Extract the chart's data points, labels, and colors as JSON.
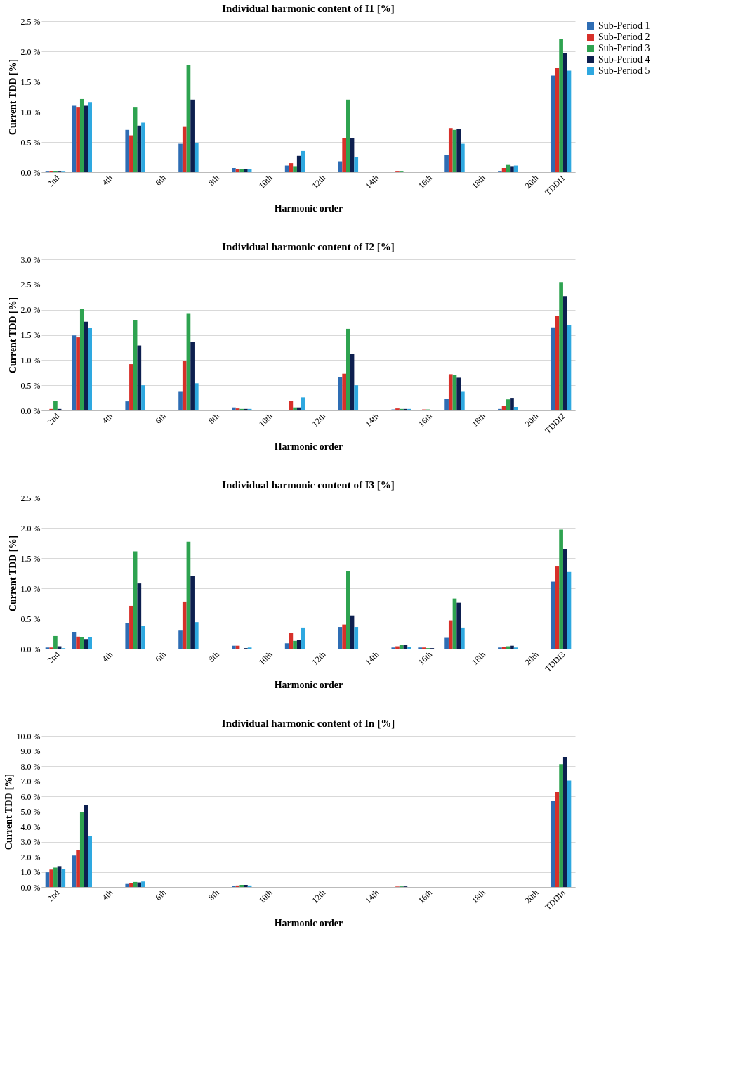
{
  "chart_data": [
    {
      "type": "bar",
      "title": "Individual harmonic content of I1 [%]",
      "xlabel": "Harmonic order",
      "ylabel": "Current TDD [%]",
      "categories": [
        "2nd",
        null,
        "4th",
        null,
        "6th",
        null,
        "8th",
        null,
        "10th",
        null,
        "12th",
        null,
        "14th",
        null,
        "16th",
        null,
        "18th",
        null,
        "20th",
        "TDDI1"
      ],
      "series": [
        {
          "name": "Sub-Period 1",
          "color": "#2e6db4",
          "values": [
            0.01,
            1.1,
            0,
            0.7,
            0,
            0.47,
            0,
            0.07,
            0,
            0.11,
            0,
            0.18,
            0,
            0,
            0,
            0.29,
            0,
            0.01,
            0,
            1.6
          ]
        },
        {
          "name": "Sub-Period 2",
          "color": "#d7302a",
          "values": [
            0.02,
            1.08,
            0,
            0.61,
            0,
            0.76,
            0,
            0.05,
            0,
            0.15,
            0,
            0.56,
            0,
            0.01,
            0,
            0.73,
            0,
            0.07,
            0,
            1.72
          ]
        },
        {
          "name": "Sub-Period 3",
          "color": "#2ea350",
          "values": [
            0.02,
            1.21,
            0,
            1.08,
            0,
            1.78,
            0,
            0.05,
            0,
            0.1,
            0,
            1.2,
            0,
            0.01,
            0,
            0.7,
            0,
            0.12,
            0,
            2.2
          ]
        },
        {
          "name": "Sub-Period 4",
          "color": "#0d1f4f",
          "values": [
            0.01,
            1.1,
            0,
            0.77,
            0,
            1.2,
            0,
            0.05,
            0,
            0.27,
            0,
            0.56,
            0,
            0,
            0,
            0.72,
            0,
            0.1,
            0,
            1.97
          ]
        },
        {
          "name": "Sub-Period 5",
          "color": "#2ea8e0",
          "values": [
            0.01,
            1.16,
            0,
            0.82,
            0,
            0.49,
            0,
            0.05,
            0,
            0.35,
            0,
            0.25,
            0,
            0,
            0,
            0.47,
            0,
            0.11,
            0,
            1.68
          ]
        }
      ],
      "ylim": [
        0,
        2.5
      ],
      "yticks": [
        {
          "value": 0,
          "label": "0.0 %"
        },
        {
          "value": 0.5,
          "label": "0.5 %"
        },
        {
          "value": 1,
          "label": "1.0 %"
        },
        {
          "value": 1.5,
          "label": "1.5 %"
        },
        {
          "value": 2,
          "label": "2.0 %"
        },
        {
          "value": 2.5,
          "label": "2.5 %"
        }
      ],
      "grid": "y",
      "legend": "right"
    },
    {
      "type": "bar",
      "title": "Individual harmonic content of I2 [%]",
      "xlabel": "Harmonic order",
      "ylabel": "Current TDD [%]",
      "categories": [
        "2nd",
        null,
        "4th",
        null,
        "6th",
        null,
        "8th",
        null,
        "10th",
        null,
        "12th",
        null,
        "14th",
        null,
        "16th",
        null,
        "18th",
        null,
        "20th",
        "TDDI2"
      ],
      "series": [
        {
          "name": "Sub-Period 1",
          "color": "#2e6db4",
          "values": [
            0,
            1.49,
            0,
            0.18,
            0,
            0.37,
            0,
            0.06,
            0,
            0.01,
            0,
            0.66,
            0,
            0.02,
            0.01,
            0.23,
            0,
            0.03,
            0,
            1.65
          ]
        },
        {
          "name": "Sub-Period 2",
          "color": "#d7302a",
          "values": [
            0.03,
            1.45,
            0,
            0.92,
            0,
            0.99,
            0,
            0.04,
            0,
            0.19,
            0,
            0.73,
            0,
            0.04,
            0.02,
            0.72,
            0,
            0.09,
            0,
            1.88
          ]
        },
        {
          "name": "Sub-Period 3",
          "color": "#2ea350",
          "values": [
            0.19,
            2.02,
            0,
            1.79,
            0,
            1.92,
            0,
            0.03,
            0,
            0.06,
            0,
            1.62,
            0,
            0.03,
            0.02,
            0.7,
            0,
            0.22,
            0,
            2.55
          ]
        },
        {
          "name": "Sub-Period 4",
          "color": "#0d1f4f",
          "values": [
            0.03,
            1.76,
            0,
            1.29,
            0,
            1.36,
            0,
            0.03,
            0,
            0.06,
            0,
            1.13,
            0,
            0.03,
            0.01,
            0.65,
            0,
            0.25,
            0,
            2.27
          ]
        },
        {
          "name": "Sub-Period 5",
          "color": "#2ea8e0",
          "values": [
            0,
            1.64,
            0,
            0.5,
            0,
            0.54,
            0,
            0.03,
            0,
            0.26,
            0,
            0.5,
            0,
            0.03,
            0,
            0.37,
            0,
            0.07,
            0,
            1.69
          ]
        }
      ],
      "ylim": [
        0,
        3
      ],
      "yticks": [
        {
          "value": 0,
          "label": "0.0 %"
        },
        {
          "value": 0.5,
          "label": "0.5 %"
        },
        {
          "value": 1,
          "label": "1.0 %"
        },
        {
          "value": 1.5,
          "label": "1.5 %"
        },
        {
          "value": 2,
          "label": "2.0 %"
        },
        {
          "value": 2.5,
          "label": "2.5 %"
        },
        {
          "value": 3,
          "label": "3.0 %"
        }
      ],
      "grid": "y",
      "legend": "right"
    },
    {
      "type": "bar",
      "title": "Individual harmonic content of I3 [%]",
      "xlabel": "Harmonic order",
      "ylabel": "Current TDD [%]",
      "categories": [
        "2nd",
        null,
        "4th",
        null,
        "6th",
        null,
        "8th",
        null,
        "10th",
        null,
        "12th",
        null,
        "14th",
        null,
        "16th",
        null,
        "18th",
        null,
        "20th",
        "TDDI3"
      ],
      "series": [
        {
          "name": "Sub-Period 1",
          "color": "#2e6db4",
          "values": [
            0.02,
            0.28,
            0,
            0.42,
            0,
            0.3,
            0,
            0.05,
            0,
            0.09,
            0,
            0.36,
            0,
            0.02,
            0.02,
            0.18,
            0,
            0.02,
            0,
            1.11
          ]
        },
        {
          "name": "Sub-Period 2",
          "color": "#d7302a",
          "values": [
            0.02,
            0.2,
            0,
            0.71,
            0,
            0.78,
            0,
            0.05,
            0,
            0.26,
            0,
            0.4,
            0,
            0.04,
            0.02,
            0.47,
            0,
            0.03,
            0,
            1.36
          ]
        },
        {
          "name": "Sub-Period 3",
          "color": "#2ea350",
          "values": [
            0.21,
            0.19,
            0,
            1.61,
            0,
            1.77,
            0,
            0,
            0,
            0.13,
            0,
            1.28,
            0,
            0.07,
            0.01,
            0.83,
            0,
            0.04,
            0,
            1.97
          ]
        },
        {
          "name": "Sub-Period 4",
          "color": "#0d1f4f",
          "values": [
            0.04,
            0.16,
            0,
            1.08,
            0,
            1.2,
            0,
            0.01,
            0,
            0.15,
            0,
            0.55,
            0,
            0.07,
            0.01,
            0.76,
            0,
            0.05,
            0,
            1.65
          ]
        },
        {
          "name": "Sub-Period 5",
          "color": "#2ea8e0",
          "values": [
            0.01,
            0.19,
            0,
            0.38,
            0,
            0.44,
            0,
            0.02,
            0,
            0.35,
            0,
            0.36,
            0,
            0.03,
            0,
            0.35,
            0,
            0.02,
            0,
            1.27
          ]
        }
      ],
      "ylim": [
        0,
        2.5
      ],
      "yticks": [
        {
          "value": 0,
          "label": "0.0 %"
        },
        {
          "value": 0.5,
          "label": "0.5 %"
        },
        {
          "value": 1,
          "label": "1.0 %"
        },
        {
          "value": 1.5,
          "label": "1.5 %"
        },
        {
          "value": 2,
          "label": "2.0 %"
        },
        {
          "value": 2.5,
          "label": "2.5 %"
        }
      ],
      "grid": "y",
      "legend": "right"
    },
    {
      "type": "bar",
      "title": "Individual harmonic content of In [%]",
      "xlabel": "Harmonic order",
      "ylabel": "Current TDD [%]",
      "categories": [
        "2nd",
        null,
        "4th",
        null,
        "6th",
        null,
        "8th",
        null,
        "10th",
        null,
        "12th",
        null,
        "14th",
        null,
        "16th",
        null,
        "18th",
        null,
        "20th",
        "TDDIn"
      ],
      "series": [
        {
          "name": "Sub-Period 1",
          "color": "#2e6db4",
          "values": [
            0.97,
            2.08,
            0,
            0.2,
            0,
            0,
            0,
            0.09,
            0,
            0,
            0,
            0,
            0,
            null,
            0,
            0,
            0,
            0,
            0,
            5.72
          ]
        },
        {
          "name": "Sub-Period 2",
          "color": "#d7302a",
          "values": [
            1.15,
            2.42,
            0,
            0.25,
            0,
            0,
            0,
            0.1,
            0,
            0,
            0,
            0,
            0,
            0.03,
            0,
            0,
            0,
            0,
            0,
            6.28
          ]
        },
        {
          "name": "Sub-Period 3",
          "color": "#2ea350",
          "values": [
            1.28,
            4.97,
            0,
            0.33,
            0,
            0,
            0,
            0.14,
            0,
            0,
            0,
            0,
            0,
            0.04,
            0,
            0,
            0,
            0,
            0,
            8.13
          ]
        },
        {
          "name": "Sub-Period 4",
          "color": "#0d1f4f",
          "values": [
            1.38,
            5.4,
            0,
            0.3,
            0,
            0,
            0,
            0.14,
            0,
            0,
            0,
            0,
            0,
            0.04,
            0,
            0,
            0,
            0,
            0,
            8.6
          ]
        },
        {
          "name": "Sub-Period 5",
          "color": "#2ea8e0",
          "values": [
            1.2,
            3.38,
            0,
            0.36,
            0,
            0,
            0,
            0.1,
            0,
            0,
            0,
            0,
            0,
            null,
            0,
            0,
            0,
            0,
            0,
            7.05
          ]
        }
      ],
      "ylim": [
        0,
        10
      ],
      "yticks": [
        {
          "value": 0,
          "label": "0.0 %"
        },
        {
          "value": 1,
          "label": "1.0 %"
        },
        {
          "value": 2,
          "label": "2.0 %"
        },
        {
          "value": 3,
          "label": "3.0 %"
        },
        {
          "value": 4,
          "label": "4.0 %"
        },
        {
          "value": 5,
          "label": "5.0 %"
        },
        {
          "value": 6,
          "label": "6.0 %"
        },
        {
          "value": 7,
          "label": "7.0 %"
        },
        {
          "value": 8,
          "label": "8.0 %"
        },
        {
          "value": 9,
          "label": "9.0 %"
        },
        {
          "value": 10,
          "label": "10.0 %"
        }
      ],
      "grid": "y",
      "legend": "right"
    }
  ]
}
